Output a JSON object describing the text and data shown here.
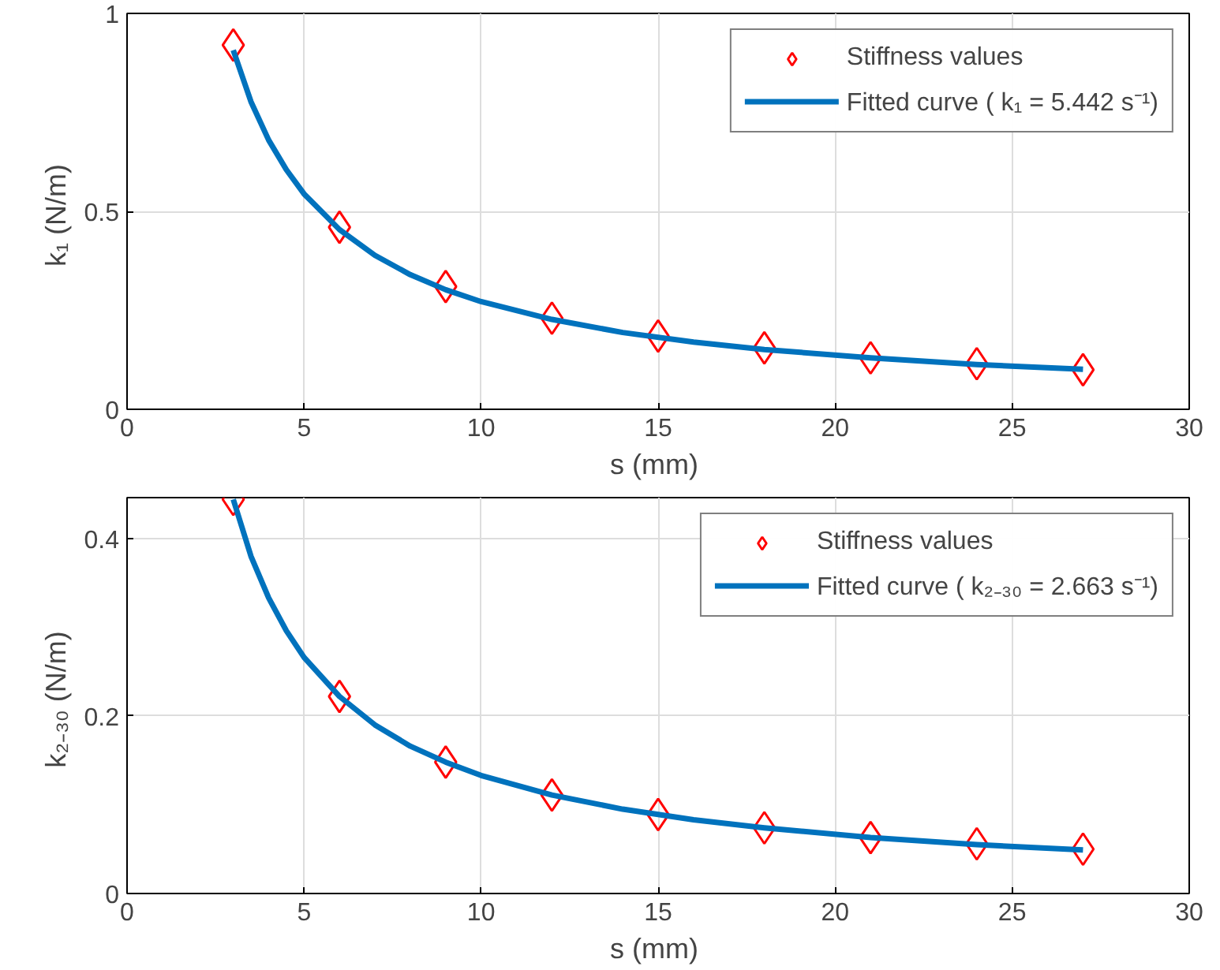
{
  "chart_data": [
    {
      "type": "scatter",
      "xlabel": "s  (mm)",
      "ylabel": "k₁  (N/m)",
      "xlim": [
        0,
        30
      ],
      "ylim": [
        0,
        1
      ],
      "xticks": [
        0,
        5,
        10,
        15,
        20,
        25,
        30
      ],
      "yticks": [
        0,
        0.5,
        1
      ],
      "grid": true,
      "legend": "top right",
      "series": [
        {
          "name": "Stiffness values",
          "marker": "diamond",
          "color": "#ff0000",
          "x": [
            3,
            6,
            9,
            12,
            15,
            18,
            21,
            24,
            27
          ],
          "values": [
            0.92,
            0.46,
            0.31,
            0.23,
            0.185,
            0.155,
            0.13,
            0.115,
            0.1
          ]
        },
        {
          "name": "Fitted curve ( k₁ = 5.442 s⁻¹)",
          "type": "line",
          "line_style": "solid",
          "color": "#0072bd",
          "x": [
            3,
            3.5,
            4,
            4.5,
            5,
            6,
            7,
            8,
            9,
            10,
            12,
            14,
            16,
            18,
            21,
            24,
            27
          ],
          "values": [
            0.907,
            0.777,
            0.68,
            0.605,
            0.544,
            0.454,
            0.389,
            0.34,
            0.302,
            0.272,
            0.227,
            0.194,
            0.17,
            0.151,
            0.13,
            0.113,
            0.101
          ]
        }
      ]
    },
    {
      "type": "scatter",
      "xlabel": "s  (mm)",
      "ylabel": "k₂₋₃₀  (N/m)",
      "xlim": [
        0,
        30
      ],
      "ylim": [
        0,
        0.446
      ],
      "xticks": [
        0,
        5,
        10,
        15,
        20,
        25,
        30
      ],
      "yticks": [
        0,
        0.2,
        0.4
      ],
      "grid": true,
      "legend": "top right",
      "series": [
        {
          "name": "Stiffness values",
          "marker": "diamond",
          "color": "#ff0000",
          "x": [
            3,
            6,
            9,
            12,
            15,
            18,
            21,
            24,
            27
          ],
          "values": [
            0.444,
            0.222,
            0.148,
            0.111,
            0.089,
            0.074,
            0.063,
            0.056,
            0.05
          ]
        },
        {
          "name": "Fitted curve ( k₂₋₃₀ = 2.663 s⁻¹)",
          "type": "line",
          "line_style": "solid",
          "color": "#0072bd",
          "x": [
            3,
            3.5,
            4,
            4.5,
            5,
            6,
            7,
            8,
            9,
            10,
            12,
            14,
            16,
            18,
            21,
            24,
            27
          ],
          "values": [
            0.444,
            0.38,
            0.333,
            0.296,
            0.266,
            0.222,
            0.19,
            0.166,
            0.148,
            0.133,
            0.111,
            0.095,
            0.083,
            0.074,
            0.063,
            0.055,
            0.049
          ]
        }
      ]
    }
  ]
}
